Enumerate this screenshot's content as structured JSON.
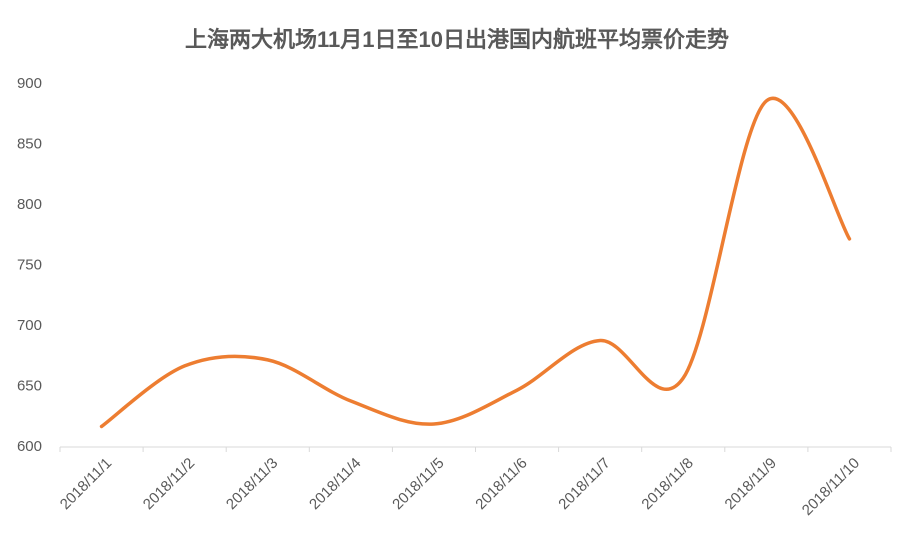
{
  "chart_data": {
    "type": "line",
    "title": "上海两大机场11月1日至10日出港国内航班平均票价走势",
    "categories": [
      "2018/11/1",
      "2018/11/2",
      "2018/11/3",
      "2018/11/4",
      "2018/11/5",
      "2018/11/6",
      "2018/11/7",
      "2018/11/8",
      "2018/11/9",
      "2018/11/10"
    ],
    "series": [
      {
        "name": "平均票价",
        "color": "#ed7d31",
        "values": [
          617,
          667,
          672,
          638,
          619,
          647,
          688,
          657,
          886,
          772
        ]
      }
    ],
    "smooth": true,
    "ylim": [
      600,
      900
    ],
    "yticks": [
      600,
      650,
      700,
      750,
      800,
      850,
      900
    ],
    "grid": false
  }
}
